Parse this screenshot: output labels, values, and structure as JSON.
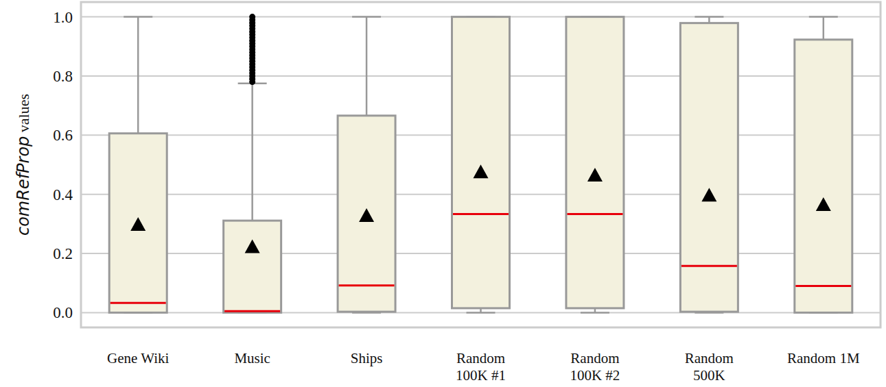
{
  "chart_data": {
    "type": "box",
    "ylabel": "comRefProp values",
    "categories": [
      "Gene Wiki",
      "Music",
      "Ships",
      "Random 100K #1",
      "Random 100K #2",
      "Random 500K",
      "Random 1M"
    ],
    "whisker_low": [
      0,
      0,
      0,
      0,
      0,
      0,
      0
    ],
    "q1": [
      0,
      0,
      0.003,
      0.015,
      0.015,
      0.003,
      0
    ],
    "median": [
      0.033,
      0.005,
      0.092,
      0.333,
      0.333,
      0.158,
      0.09
    ],
    "q3": [
      0.606,
      0.311,
      0.666,
      1.0,
      1.0,
      0.979,
      0.923
    ],
    "whisker_high": [
      1.0,
      0.775,
      1.0,
      1.0,
      1.0,
      1.0,
      1.0
    ],
    "mean": [
      0.295,
      0.22,
      0.325,
      0.473,
      0.462,
      0.394,
      0.362
    ],
    "outliers": [
      [],
      [
        0.78,
        0.79,
        0.8,
        0.81,
        0.82,
        0.83,
        0.84,
        0.85,
        0.86,
        0.87,
        0.88,
        0.89,
        0.9,
        0.91,
        0.92,
        0.93,
        0.94,
        0.95,
        0.96,
        0.97,
        0.98,
        0.99,
        1.0
      ],
      [],
      [],
      [],
      [],
      []
    ],
    "color": "#f3f1de",
    "ylim": [
      -0.05,
      1.05
    ],
    "yticks": [
      {
        "value": 0,
        "label": "0.0"
      },
      {
        "value": 0.2,
        "label": "0.2"
      },
      {
        "value": 0.4,
        "label": "0.4"
      },
      {
        "value": 0.6,
        "label": "0.6"
      },
      {
        "value": 0.8,
        "label": "0.8"
      },
      {
        "value": 1,
        "label": "1.0"
      }
    ],
    "grid": true
  }
}
